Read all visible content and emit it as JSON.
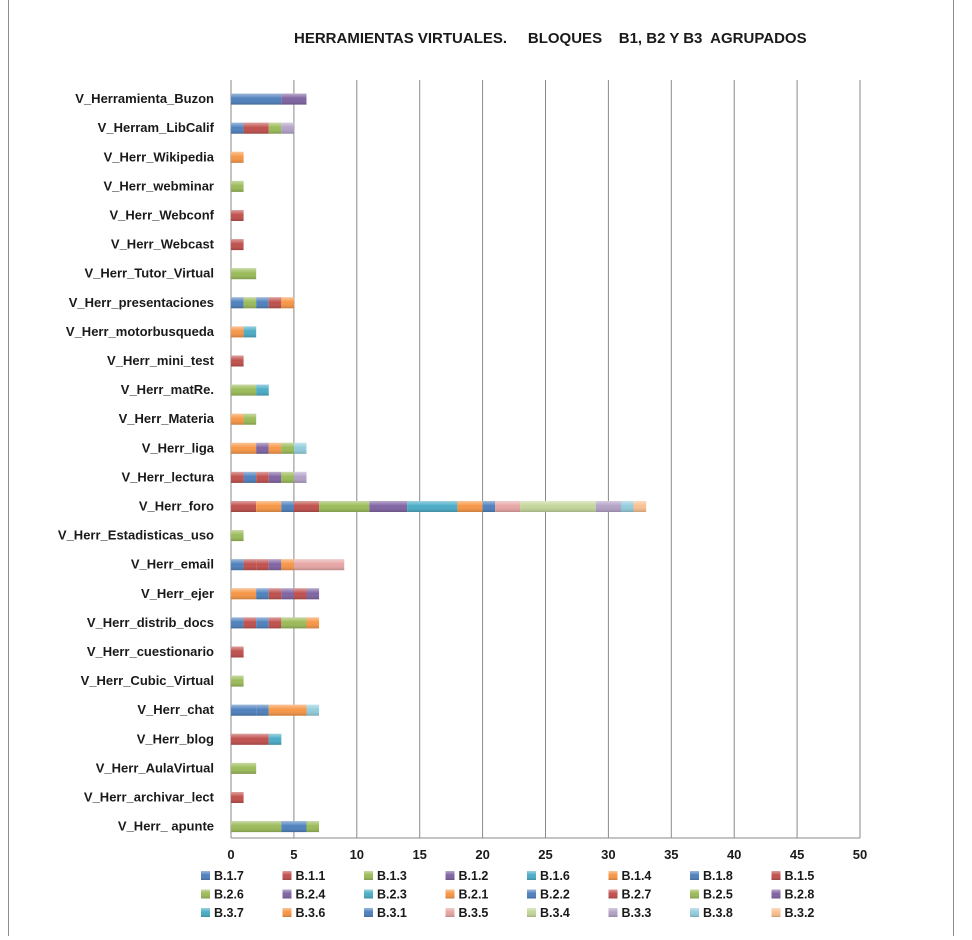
{
  "chart_data": {
    "type": "bar",
    "orientation": "horizontal",
    "stacked": true,
    "title": "HERRAMIENTAS VIRTUALES.     BLOQUES    B1, B2 Y B3  AGRUPADOS",
    "xlim": [
      0,
      50
    ],
    "xticks": [
      0,
      5,
      10,
      15,
      20,
      25,
      30,
      35,
      40,
      45,
      50
    ],
    "grid": "vertical",
    "legend_position": "bottom",
    "categories": [
      "V_Herramienta_Buzon",
      "V_Herram_LibCalif",
      "V_Herr_Wikipedia",
      "V_Herr_webminar",
      "V_Herr_Webconf",
      "V_Herr_Webcast",
      "V_Herr_Tutor_Virtual",
      "V_Herr_presentaciones",
      "V_Herr_motorbusqueda",
      "V_Herr_mini_test",
      "V_Herr_matRe.",
      "V_Herr_Materia",
      "V_Herr_liga",
      "V_Herr_lectura",
      "V_Herr_foro",
      "V_Herr_Estadisticas_uso",
      "V_Herr_email",
      "V_Herr_ejer",
      "V_Herr_distrib_docs",
      "V_Herr_cuestionario",
      "V_Herr_Cubic_Virtual",
      "V_Herr_chat",
      "V_Herr_blog",
      "V_Herr_AulaVirtual",
      "V_Herr_archivar_lect",
      "V_Herr_ apunte"
    ],
    "series": [
      {
        "name": "B.1.7",
        "color": "#4f81bd",
        "values": [
          4,
          1,
          0,
          0,
          0,
          0,
          0,
          1,
          0,
          0,
          0,
          0,
          0,
          0,
          0,
          0,
          1,
          0,
          1,
          0,
          0,
          2,
          0,
          0,
          0,
          0
        ]
      },
      {
        "name": "B.1.1",
        "color": "#c0504d",
        "values": [
          0,
          0,
          0,
          0,
          1,
          1,
          0,
          0,
          0,
          1,
          0,
          0,
          0,
          1,
          2,
          0,
          1,
          0,
          1,
          1,
          0,
          0,
          3,
          0,
          1,
          0
        ]
      },
      {
        "name": "B.1.3",
        "color": "#9bbb59",
        "values": [
          0,
          0,
          0,
          1,
          0,
          0,
          2,
          1,
          0,
          0,
          0,
          0,
          0,
          0,
          0,
          1,
          0,
          0,
          0,
          0,
          1,
          0,
          0,
          2,
          0,
          4
        ]
      },
      {
        "name": "B.1.2",
        "color": "#8064a2",
        "values": [
          2,
          0,
          0,
          0,
          0,
          0,
          0,
          0,
          0,
          0,
          0,
          0,
          0,
          0,
          0,
          0,
          0,
          0,
          0,
          0,
          0,
          0,
          0,
          0,
          0,
          0
        ]
      },
      {
        "name": "B.1.6",
        "color": "#4bacc6",
        "values": [
          0,
          0,
          0,
          0,
          0,
          0,
          0,
          0,
          0,
          0,
          0,
          0,
          0,
          0,
          0,
          0,
          0,
          0,
          0,
          0,
          0,
          0,
          1,
          0,
          0,
          0
        ]
      },
      {
        "name": "B.1.4",
        "color": "#f79646",
        "values": [
          0,
          0,
          1,
          0,
          0,
          0,
          0,
          0,
          1,
          0,
          0,
          1,
          2,
          0,
          2,
          0,
          0,
          2,
          0,
          0,
          0,
          0,
          0,
          0,
          0,
          0
        ]
      },
      {
        "name": "B.1.8",
        "color": "#4f81bd",
        "values": [
          0,
          0,
          0,
          0,
          0,
          0,
          0,
          1,
          0,
          0,
          0,
          0,
          0,
          1,
          1,
          0,
          0,
          1,
          1,
          0,
          0,
          1,
          0,
          0,
          0,
          2
        ]
      },
      {
        "name": "B.1.5",
        "color": "#c0504d",
        "values": [
          0,
          2,
          0,
          0,
          0,
          0,
          0,
          1,
          0,
          0,
          0,
          0,
          0,
          1,
          2,
          0,
          1,
          1,
          1,
          0,
          0,
          0,
          0,
          0,
          0,
          0
        ]
      },
      {
        "name": "B.2.6",
        "color": "#9bbb59",
        "values": [
          0,
          0,
          0,
          0,
          0,
          0,
          0,
          0,
          0,
          0,
          2,
          1,
          0,
          0,
          4,
          0,
          0,
          0,
          0,
          0,
          0,
          0,
          0,
          0,
          0,
          1
        ]
      },
      {
        "name": "B.2.4",
        "color": "#8064a2",
        "values": [
          0,
          0,
          0,
          0,
          0,
          0,
          0,
          0,
          0,
          0,
          0,
          0,
          1,
          1,
          3,
          0,
          1,
          1,
          0,
          0,
          0,
          0,
          0,
          0,
          0,
          0
        ]
      },
      {
        "name": "B.2.3",
        "color": "#4bacc6",
        "values": [
          0,
          0,
          0,
          0,
          0,
          0,
          0,
          0,
          1,
          0,
          1,
          0,
          0,
          0,
          4,
          0,
          0,
          0,
          0,
          0,
          0,
          0,
          0,
          0,
          0,
          0
        ]
      },
      {
        "name": "B.2.1",
        "color": "#f79646",
        "values": [
          0,
          0,
          0,
          0,
          0,
          0,
          0,
          1,
          0,
          0,
          0,
          0,
          1,
          0,
          2,
          0,
          1,
          0,
          0,
          0,
          0,
          3,
          0,
          0,
          0,
          0
        ]
      },
      {
        "name": "B.2.2",
        "color": "#4f81bd",
        "values": [
          0,
          0,
          0,
          0,
          0,
          0,
          0,
          0,
          0,
          0,
          0,
          0,
          0,
          0,
          1,
          0,
          0,
          0,
          0,
          0,
          0,
          0,
          0,
          0,
          0,
          0
        ]
      },
      {
        "name": "B.2.7",
        "color": "#c0504d",
        "values": [
          0,
          0,
          0,
          0,
          0,
          0,
          0,
          0,
          0,
          0,
          0,
          0,
          0,
          0,
          0,
          0,
          0,
          1,
          0,
          0,
          0,
          0,
          0,
          0,
          0,
          0
        ]
      },
      {
        "name": "B.2.5",
        "color": "#9bbb59",
        "values": [
          0,
          1,
          0,
          0,
          0,
          0,
          0,
          0,
          0,
          0,
          0,
          0,
          1,
          1,
          0,
          0,
          0,
          0,
          2,
          0,
          0,
          0,
          0,
          0,
          0,
          0
        ]
      },
      {
        "name": "B.2.8",
        "color": "#8064a2",
        "values": [
          0,
          0,
          0,
          0,
          0,
          0,
          0,
          0,
          0,
          0,
          0,
          0,
          0,
          0,
          0,
          0,
          0,
          1,
          0,
          0,
          0,
          0,
          0,
          0,
          0,
          0
        ]
      },
      {
        "name": "B.3.7",
        "color": "#4bacc6",
        "values": [
          0,
          0,
          0,
          0,
          0,
          0,
          0,
          0,
          0,
          0,
          0,
          0,
          0,
          0,
          0,
          0,
          0,
          0,
          0,
          0,
          0,
          0,
          0,
          0,
          0,
          0
        ]
      },
      {
        "name": "B.3.6",
        "color": "#f79646",
        "values": [
          0,
          0,
          0,
          0,
          0,
          0,
          0,
          0,
          0,
          0,
          0,
          0,
          0,
          0,
          0,
          0,
          0,
          0,
          1,
          0,
          0,
          0,
          0,
          0,
          0,
          0
        ]
      },
      {
        "name": "B.3.1",
        "color": "#4f81bd",
        "values": [
          0,
          0,
          0,
          0,
          0,
          0,
          0,
          0,
          0,
          0,
          0,
          0,
          0,
          0,
          0,
          0,
          0,
          0,
          0,
          0,
          0,
          0,
          0,
          0,
          0,
          0
        ]
      },
      {
        "name": "B.3.5",
        "color": "#e6a6a5",
        "values": [
          0,
          0,
          0,
          0,
          0,
          0,
          0,
          0,
          0,
          0,
          0,
          0,
          0,
          0,
          2,
          0,
          4,
          0,
          0,
          0,
          0,
          0,
          0,
          0,
          0,
          0
        ]
      },
      {
        "name": "B.3.4",
        "color": "#c3d69b",
        "values": [
          0,
          0,
          0,
          0,
          0,
          0,
          0,
          0,
          0,
          0,
          0,
          0,
          0,
          0,
          6,
          0,
          0,
          0,
          0,
          0,
          0,
          0,
          0,
          0,
          0,
          0
        ]
      },
      {
        "name": "B.3.3",
        "color": "#b3a2c7",
        "values": [
          0,
          1,
          0,
          0,
          0,
          0,
          0,
          0,
          0,
          0,
          0,
          0,
          0,
          1,
          2,
          0,
          0,
          0,
          0,
          0,
          0,
          0,
          0,
          0,
          0,
          0
        ]
      },
      {
        "name": "B.3.8",
        "color": "#93cddd",
        "values": [
          0,
          0,
          0,
          0,
          0,
          0,
          0,
          0,
          0,
          0,
          0,
          0,
          1,
          0,
          1,
          0,
          0,
          0,
          0,
          0,
          0,
          1,
          0,
          0,
          0,
          0
        ]
      },
      {
        "name": "B.3.2",
        "color": "#fac090",
        "values": [
          0,
          0,
          0,
          0,
          0,
          0,
          0,
          0,
          0,
          0,
          0,
          0,
          0,
          0,
          1,
          0,
          0,
          0,
          0,
          0,
          0,
          0,
          0,
          0,
          0,
          0
        ]
      }
    ]
  }
}
